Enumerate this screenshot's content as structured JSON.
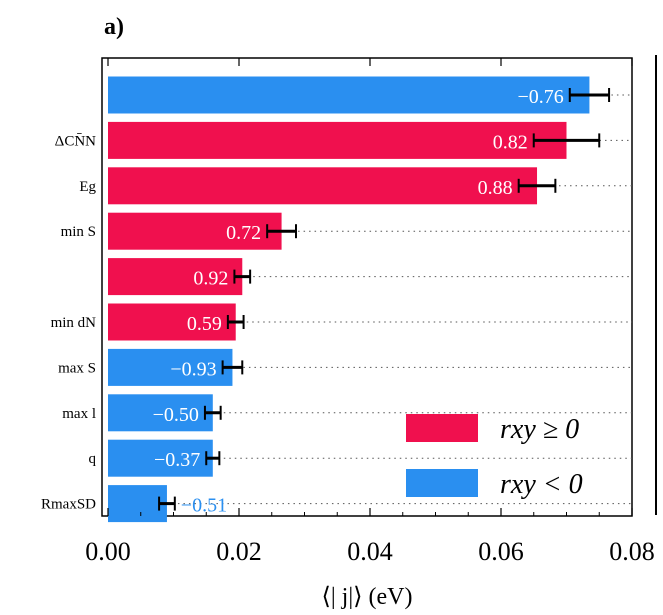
{
  "panel_label": "a)",
  "colors": {
    "positive": "#f0104e",
    "negative": "#2a8ff0",
    "text_on_bar": "#ffffff",
    "outside_label": "#2a8ff0"
  },
  "chart_data": {
    "type": "bar",
    "orientation": "horizontal",
    "xlim": [
      0.0,
      0.08
    ],
    "xticks": [
      "0.00",
      "0.02",
      "0.04",
      "0.06",
      "0.08"
    ],
    "xlabel": "⟨|  j|⟩ (eV)",
    "grid": "dotted guide line from each bar to the right axis",
    "categories": [
      "",
      "ΔCN̄N",
      "Eg",
      "min  S",
      "",
      "min dN",
      "max  S",
      "max l",
      "q",
      "RmaxSD"
    ],
    "values": [
      0.0735,
      0.07,
      0.0655,
      0.0265,
      0.0205,
      0.0195,
      0.019,
      0.016,
      0.016,
      0.009
    ],
    "errors": [
      0.003,
      0.005,
      0.0028,
      0.0022,
      0.0012,
      0.0012,
      0.0015,
      0.0012,
      0.001,
      0.0012
    ],
    "correlations": [
      "−0.76",
      "0.82",
      "0.88",
      "0.72",
      "0.92",
      "0.59",
      "−0.93",
      "−0.50",
      "−0.37",
      "−0.51"
    ],
    "sign": [
      "neg",
      "pos",
      "pos",
      "pos",
      "pos",
      "pos",
      "neg",
      "neg",
      "neg",
      "neg"
    ],
    "legend": {
      "placement": "bottom-right",
      "entries": [
        {
          "label": "rxy ≥ 0",
          "sign": "pos"
        },
        {
          "label": "rxy < 0",
          "sign": "neg"
        }
      ]
    }
  }
}
